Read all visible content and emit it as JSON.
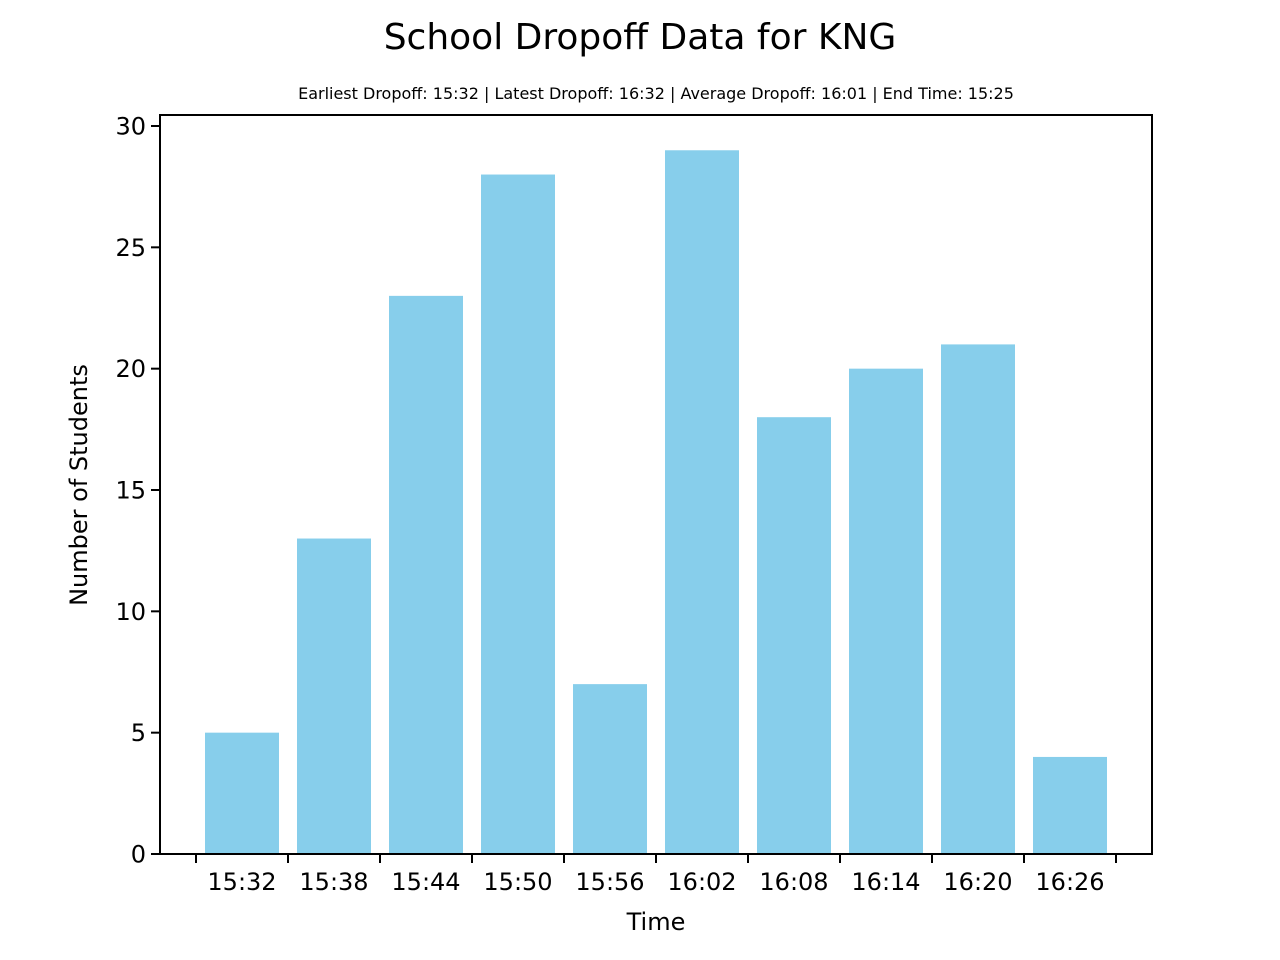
{
  "chart_data": {
    "type": "bar",
    "title": "School Dropoff Data for KNG",
    "subtitle": "Earliest Dropoff: 15:32 | Latest Dropoff: 16:32 | Average Dropoff: 16:01 | End Time: 15:25",
    "xlabel": "Time",
    "ylabel": "Number of Students",
    "categories": [
      "15:32",
      "15:38",
      "15:44",
      "15:50",
      "15:56",
      "16:02",
      "16:08",
      "16:14",
      "16:20",
      "16:26"
    ],
    "values": [
      5,
      13,
      23,
      28,
      7,
      29,
      18,
      20,
      21,
      4
    ],
    "ylim": [
      0,
      30
    ],
    "yticks": [
      0,
      5,
      10,
      15,
      20,
      25,
      30
    ],
    "grid": false,
    "bar_color": "#87ceeb",
    "axis_color": "#000000"
  }
}
